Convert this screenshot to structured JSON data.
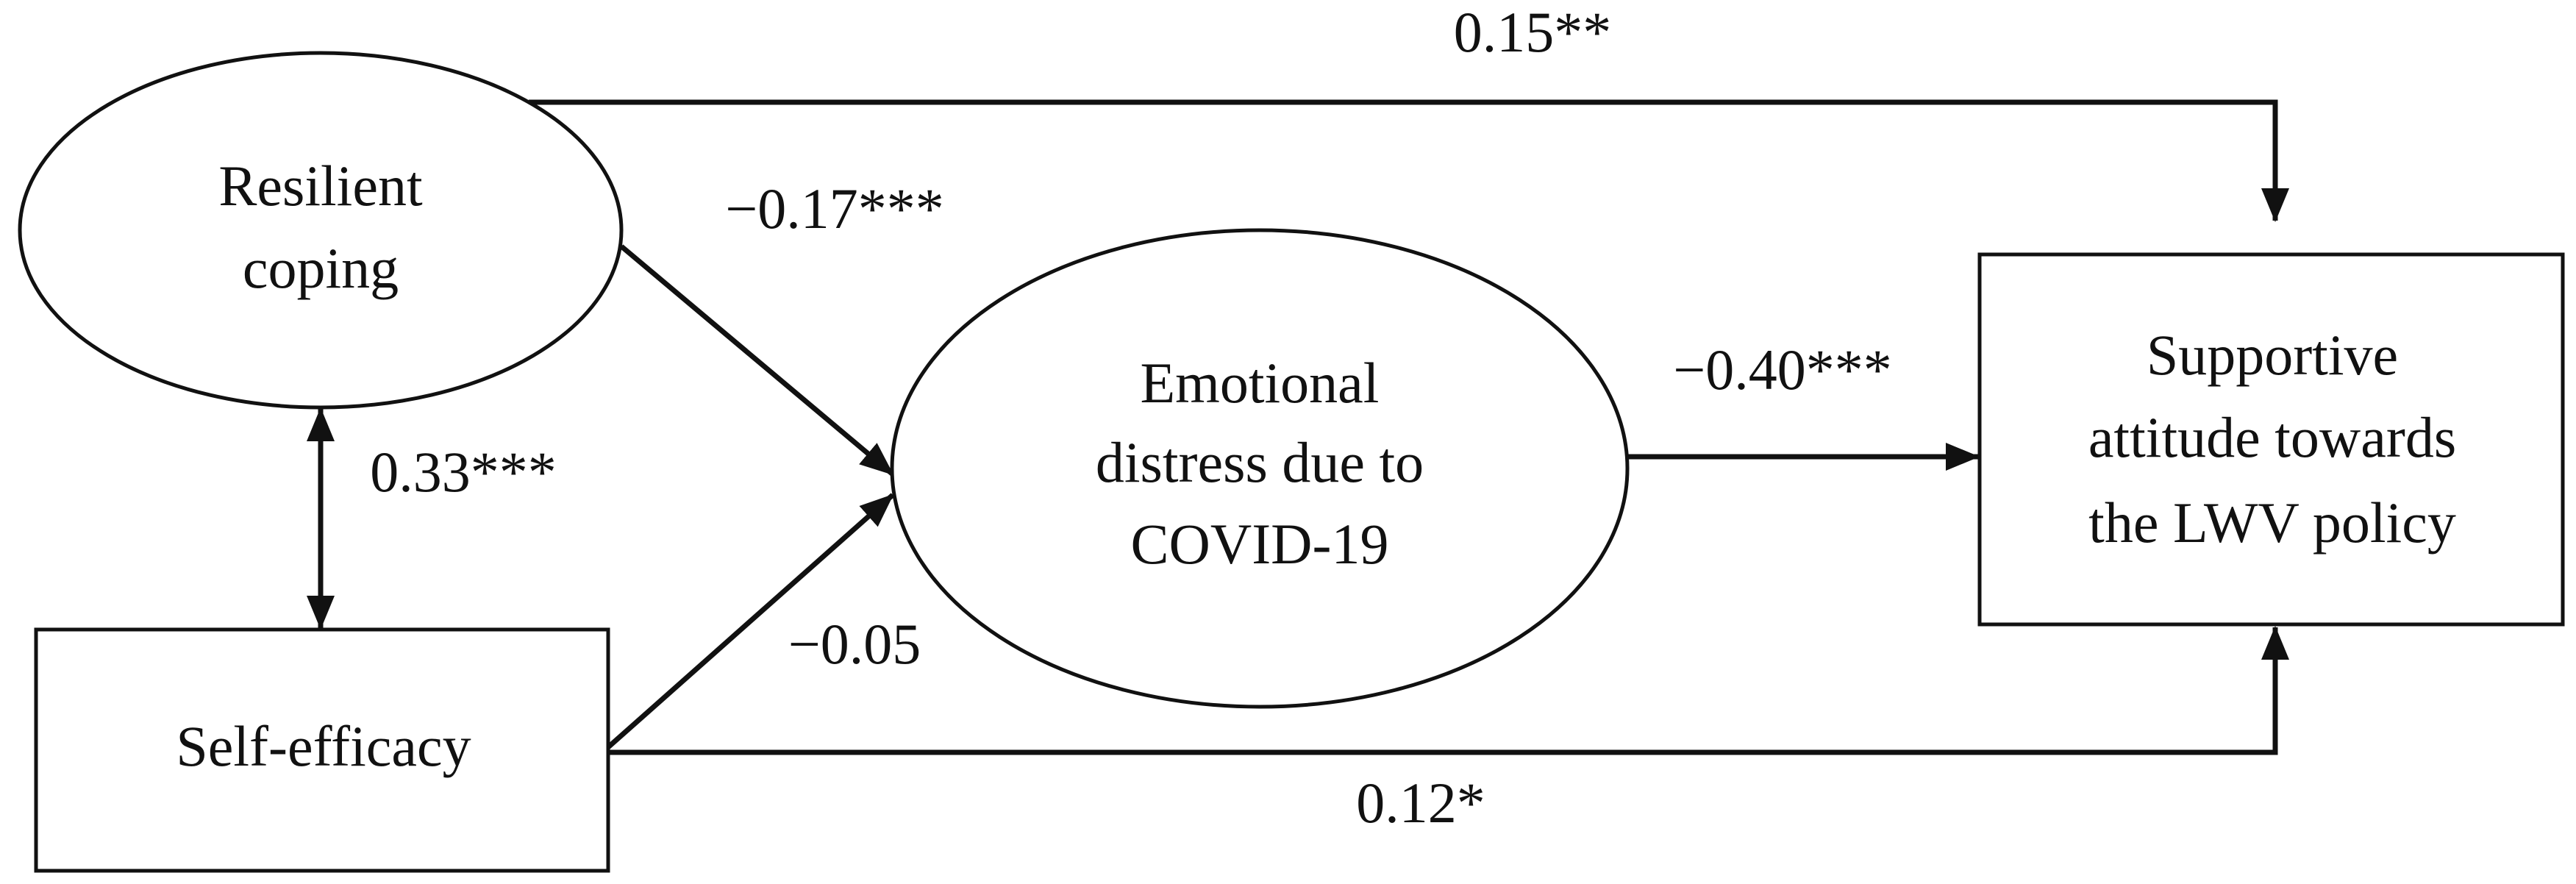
{
  "nodes": [
    {
      "lines": [
        "Resilient",
        "coping"
      ]
    },
    {
      "lines": [
        "Self-efficacy"
      ]
    },
    {
      "lines": [
        "Emotional",
        "distress due to",
        "COVID-19"
      ]
    },
    {
      "lines": [
        "Supportive",
        "attitude towards",
        "the LWV policy"
      ]
    }
  ],
  "edges": [
    {
      "label": "0.15**"
    },
    {
      "label": "−0.17***"
    },
    {
      "label": "−0.05"
    },
    {
      "label": "−0.40***"
    },
    {
      "label": "0.12*"
    },
    {
      "label": "0.33***"
    }
  ]
}
